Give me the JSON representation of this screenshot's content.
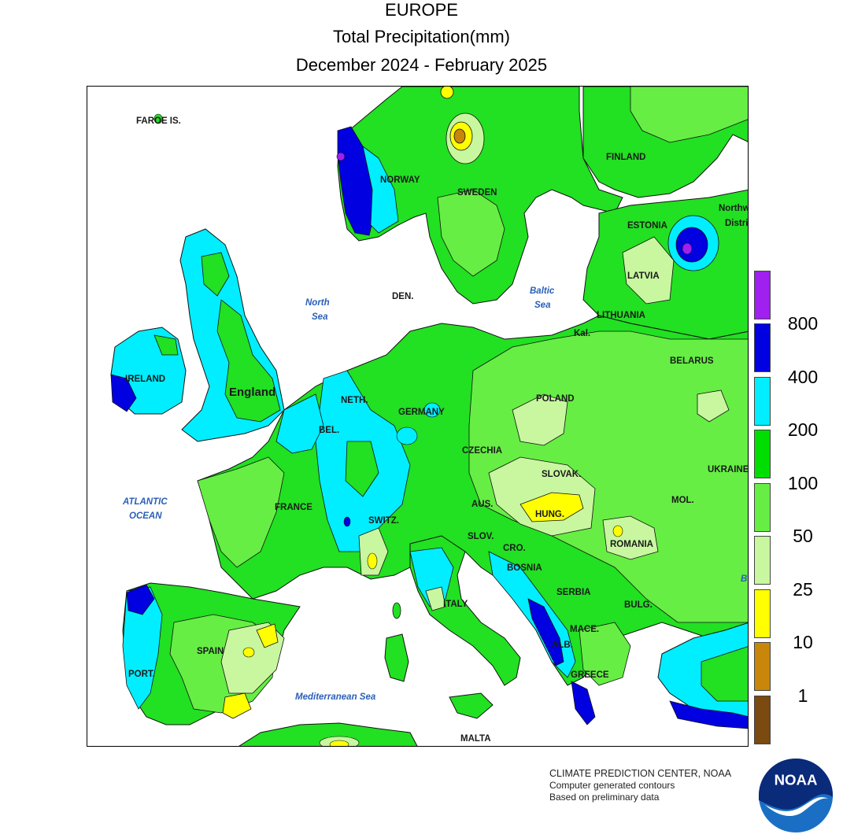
{
  "title": {
    "region": "EUROPE",
    "variable": "Total Precipitation(mm)",
    "period": "December 2024 - February 2025"
  },
  "map": {
    "country_labels": {
      "faroe": "FAROE IS.",
      "norway": "NORWAY",
      "sweden": "SWEDEN",
      "finland": "FINLAND",
      "estonia": "ESTONIA",
      "latvia": "LATVIA",
      "lithuania": "LITHUANIA",
      "kal": "Kal.",
      "belarus": "BELARUS",
      "ireland": "IRELAND",
      "england": "England",
      "denmark": "DEN.",
      "netherlands": "NETH.",
      "belgium": "BEL.",
      "germany": "GERMANY",
      "poland": "POLAND",
      "czechia": "CZECHIA",
      "slovakia": "SLOVAK.",
      "ukraine": "UKRAINE",
      "austria": "AUS.",
      "hungary": "HUNG.",
      "moldova": "MOL.",
      "france": "FRANCE",
      "switzerland": "SWITZ.",
      "slovenia": "SLOV.",
      "croatia": "CRO.",
      "romania": "ROMANIA",
      "bosnia": "BOSNIA",
      "serbia": "SERBIA",
      "bulgaria": "BULG.",
      "italy": "ITALY",
      "macedonia": "MACE.",
      "albania": "ALB.",
      "greece": "GREECE",
      "spain": "SPAIN",
      "portugal": "PORT.",
      "malta": "MALTA",
      "russia_nw_1": "Northw",
      "russia_nw_2": "Distri",
      "black_sea_partial": "B"
    },
    "sea_labels": {
      "north_sea_1": "North",
      "north_sea_2": "Sea",
      "baltic_1": "Baltic",
      "baltic_2": "Sea",
      "atlantic_1": "ATLANTIC",
      "atlantic_2": "OCEAN",
      "mediterranean": "Mediterranean Sea"
    }
  },
  "legend": {
    "thresholds": [
      "800",
      "400",
      "200",
      "100",
      "50",
      "25",
      "10",
      "1"
    ],
    "colors": [
      "#a020f0",
      "#0000e0",
      "#00eeff",
      "#00dd00",
      "#66ee44",
      "#c8f7a0",
      "#ffff00",
      "#c8860a",
      "#7a4a10"
    ],
    "bins_mm": [
      ">800",
      "400-800",
      "200-400",
      "100-200",
      "50-100",
      "25-50",
      "10-25",
      "1-10",
      "<1"
    ]
  },
  "credits": {
    "line1": "CLIMATE PREDICTION CENTER, NOAA",
    "line2": "Computer generated contours",
    "line3": "Based on preliminary data"
  },
  "logo": {
    "text": "NOAA"
  }
}
